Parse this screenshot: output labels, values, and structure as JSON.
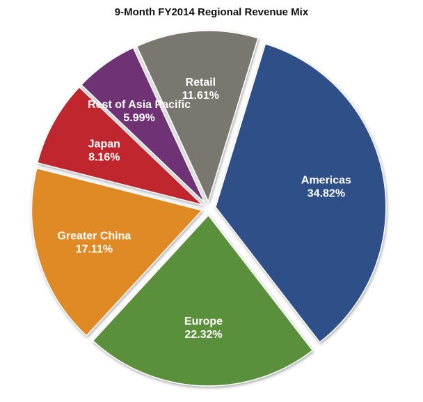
{
  "chart_data": {
    "type": "pie",
    "title": "9-Month FY2014 Regional Revenue Mix",
    "slices": [
      {
        "name": "Americas",
        "value": 34.82,
        "label": "34.82%",
        "color": "#2e5088"
      },
      {
        "name": "Europe",
        "value": 22.32,
        "label": "22.32%",
        "color": "#5a8f3a"
      },
      {
        "name": "Greater China",
        "value": 17.11,
        "label": "17.11%",
        "color": "#e08a25"
      },
      {
        "name": "Japan",
        "value": 8.16,
        "label": "8.16%",
        "color": "#c0262d"
      },
      {
        "name": "Rest of Asia Pacific",
        "value": 5.99,
        "label": "5.99%",
        "color": "#6e3274"
      },
      {
        "name": "Retail",
        "value": 11.61,
        "label": "11.61%",
        "color": "#7a7670"
      }
    ],
    "start_angle_deg": 17,
    "direction": "clockwise",
    "exploded": true,
    "legend": "none",
    "labels_inside_slices": true
  }
}
